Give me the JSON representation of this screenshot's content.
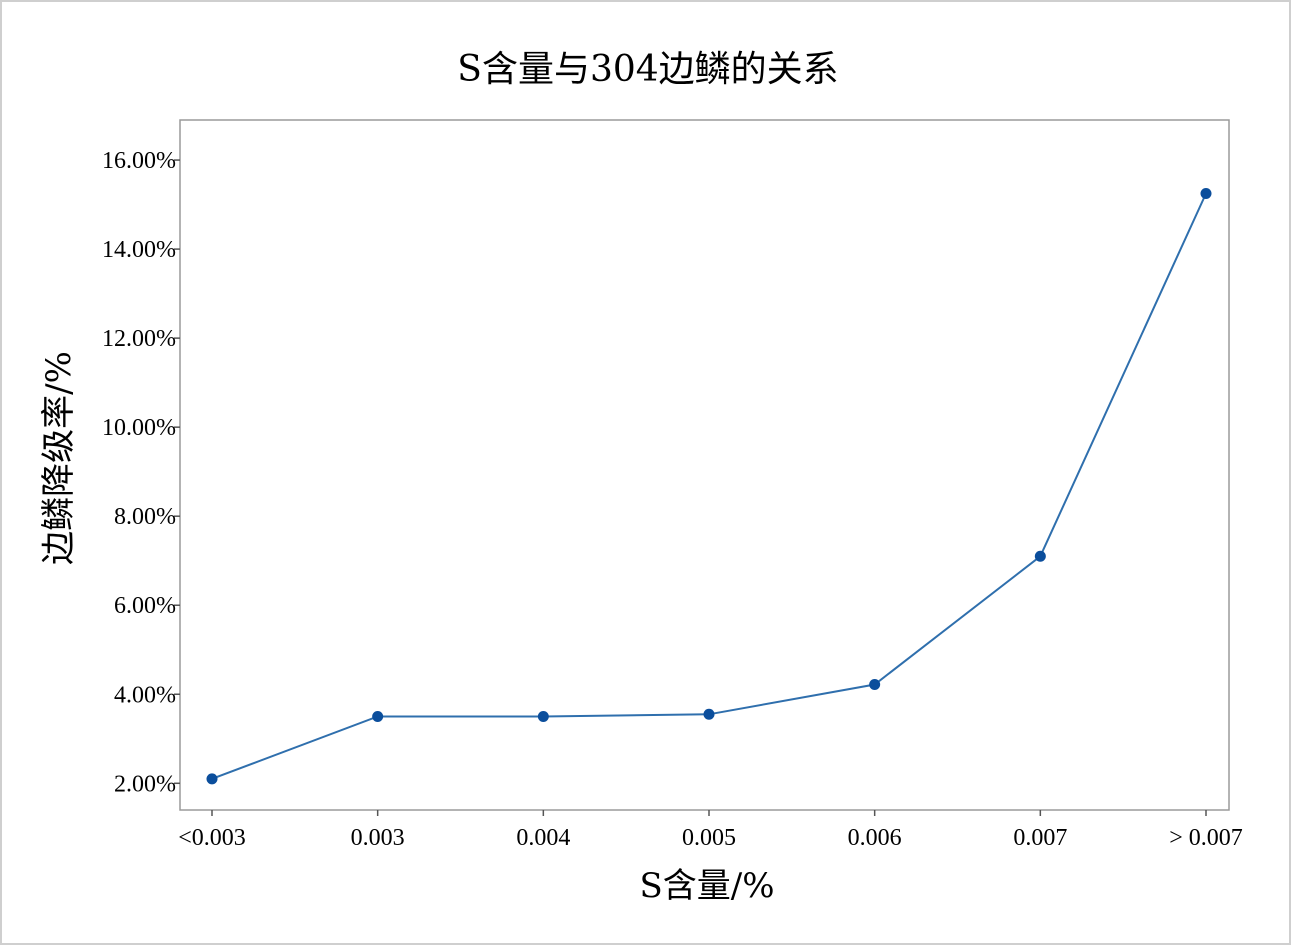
{
  "chart_data": {
    "type": "line",
    "title": "S含量与304边鳞的关系",
    "xlabel": "S含量/%",
    "ylabel": "边鳞降级率/%",
    "categories": [
      "<0.003",
      "0.003",
      "0.004",
      "0.005",
      "0.006",
      "0.007",
      "> 0.007"
    ],
    "values": [
      2.1,
      3.5,
      3.5,
      3.55,
      4.22,
      7.1,
      15.25
    ],
    "ylim": [
      1.4,
      16.9
    ],
    "yticks": [
      2,
      4,
      6,
      8,
      10,
      12,
      14,
      16
    ],
    "ytick_labels": [
      "2.00%",
      "4.00%",
      "6.00%",
      "8.00%",
      "10.00%",
      "12.00%",
      "14.00%",
      "16.00%"
    ],
    "grid": false,
    "legend": "none",
    "line_color": "#2f6fad",
    "marker_color": "#0b4e9c"
  }
}
